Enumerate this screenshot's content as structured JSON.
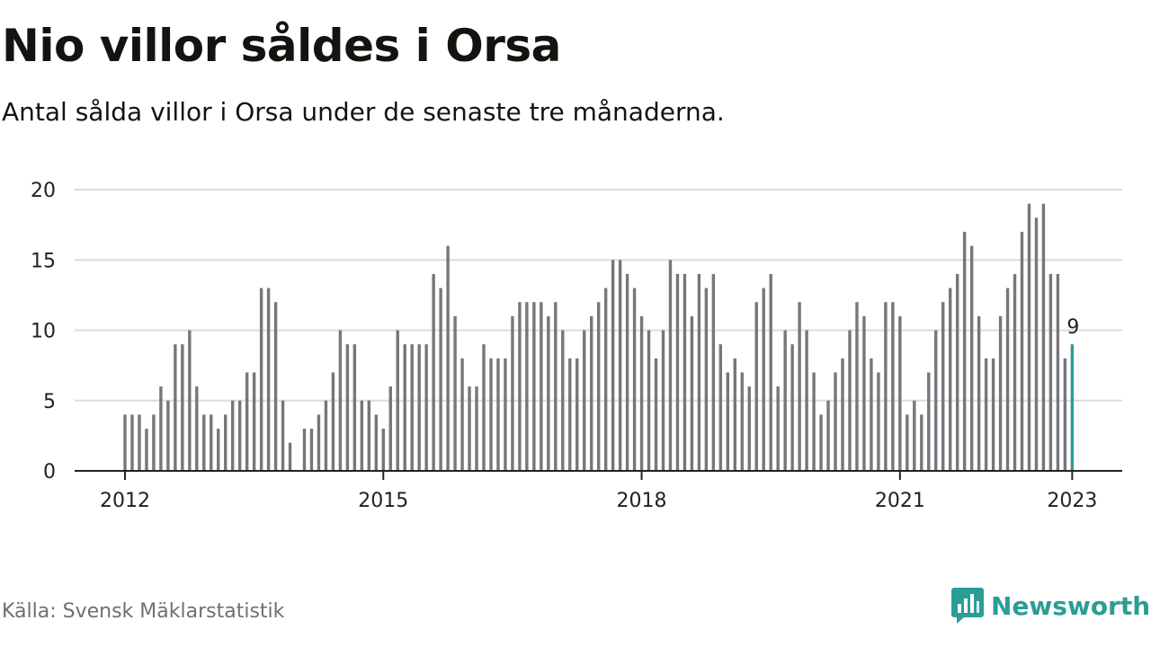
{
  "title": "Nio villor såldes i Orsa",
  "subtitle": "Antal sålda villor i Orsa under de senaste tre månaderna.",
  "source": "Källa: Svensk Mäklarstatistik",
  "brand": "Newsworthy",
  "colors": {
    "bar": "#77767b",
    "highlight": "#2a9d96",
    "grid": "#dcdcdc",
    "axis": "#222222"
  },
  "chart_data": {
    "type": "bar",
    "x_start": "2012-01",
    "highlight_last": true,
    "last_value_label": "9",
    "ylim": [
      0,
      20
    ],
    "yticks": [
      0,
      5,
      10,
      15,
      20
    ],
    "xticks": [
      {
        "label": "2012",
        "index": 0
      },
      {
        "label": "2015",
        "index": 36
      },
      {
        "label": "2018",
        "index": 72
      },
      {
        "label": "2021",
        "index": 108
      },
      {
        "label": "2023",
        "index": 132
      }
    ],
    "grid": true,
    "values": [
      4,
      4,
      4,
      3,
      4,
      6,
      5,
      9,
      9,
      10,
      6,
      4,
      4,
      3,
      4,
      5,
      5,
      7,
      7,
      13,
      13,
      12,
      5,
      2,
      null,
      3,
      3,
      4,
      5,
      7,
      10,
      9,
      9,
      5,
      5,
      4,
      3,
      6,
      10,
      9,
      9,
      9,
      9,
      14,
      13,
      16,
      11,
      8,
      6,
      6,
      9,
      8,
      8,
      8,
      11,
      12,
      12,
      12,
      12,
      11,
      12,
      10,
      8,
      8,
      10,
      11,
      12,
      13,
      15,
      15,
      14,
      13,
      11,
      10,
      8,
      10,
      15,
      14,
      14,
      11,
      14,
      13,
      14,
      9,
      7,
      8,
      7,
      6,
      12,
      13,
      14,
      6,
      10,
      9,
      12,
      10,
      7,
      4,
      5,
      7,
      8,
      10,
      12,
      11,
      8,
      7,
      12,
      12,
      11,
      4,
      5,
      4,
      7,
      10,
      12,
      13,
      14,
      17,
      16,
      11,
      8,
      8,
      11,
      13,
      14,
      17,
      19,
      18,
      19,
      14,
      14,
      8,
      9
    ]
  }
}
